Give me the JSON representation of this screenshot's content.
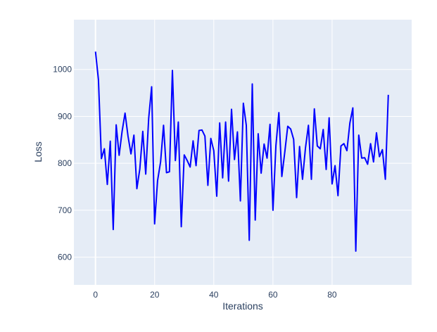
{
  "chart_data": {
    "type": "line",
    "title": "",
    "xlabel": "Iterations",
    "ylabel": "Loss",
    "xlim": [
      -7.3,
      106.9
    ],
    "ylim": [
      541,
      1106
    ],
    "x_ticks": [
      0,
      20,
      40,
      60,
      80
    ],
    "y_ticks": [
      600,
      700,
      800,
      900,
      1000
    ],
    "x_tick_labels": [
      "0",
      "20",
      "40",
      "60",
      "80"
    ],
    "y_tick_labels": [
      "600",
      "700",
      "800",
      "900",
      "1000"
    ],
    "grid": true,
    "legend": "none",
    "colors": {
      "line": "#0000ff",
      "plot_bg": "#e5ecf6",
      "grid": "#ffffff",
      "text": "#2a3f5f"
    },
    "series": [
      {
        "x": [
          0,
          1,
          2,
          3,
          4,
          5,
          6,
          7,
          8,
          9,
          10,
          11,
          12,
          13,
          14,
          15,
          16,
          17,
          18,
          19,
          20,
          21,
          22,
          23,
          24,
          25,
          26,
          27,
          28,
          29,
          30,
          31,
          32,
          33,
          34,
          35,
          36,
          37,
          38,
          39,
          40,
          41,
          42,
          43,
          44,
          45,
          46,
          47,
          48,
          49,
          50,
          51,
          52,
          53,
          54,
          55,
          56,
          57,
          58,
          59,
          60,
          61,
          62,
          63,
          64,
          65,
          66,
          67,
          68,
          69,
          70,
          71,
          72,
          73,
          74,
          75,
          76,
          77,
          78,
          79,
          80,
          81,
          82,
          83,
          84,
          85,
          86,
          87,
          88,
          89,
          90,
          91,
          92,
          93,
          94,
          95,
          96,
          97,
          98,
          99
        ],
        "values": [
          1038,
          978,
          810,
          831,
          755,
          847,
          659,
          882,
          817,
          868,
          907,
          858,
          820,
          860,
          746,
          788,
          868,
          777,
          896,
          963,
          671,
          763,
          803,
          881,
          780,
          782,
          998,
          806,
          888,
          665,
          818,
          806,
          792,
          848,
          795,
          870,
          871,
          858,
          753,
          853,
          827,
          730,
          886,
          769,
          888,
          762,
          915,
          808,
          867,
          720,
          928,
          881,
          636,
          969,
          679,
          863,
          779,
          841,
          811,
          883,
          700,
          838,
          908,
          772,
          824,
          879,
          873,
          851,
          727,
          836,
          766,
          833,
          881,
          766,
          916,
          837,
          831,
          872,
          787,
          897,
          756,
          795,
          731,
          837,
          842,
          827,
          886,
          918,
          613,
          860,
          811,
          812,
          798,
          842,
          803,
          865,
          814,
          829,
          766,
          946
        ]
      }
    ]
  }
}
